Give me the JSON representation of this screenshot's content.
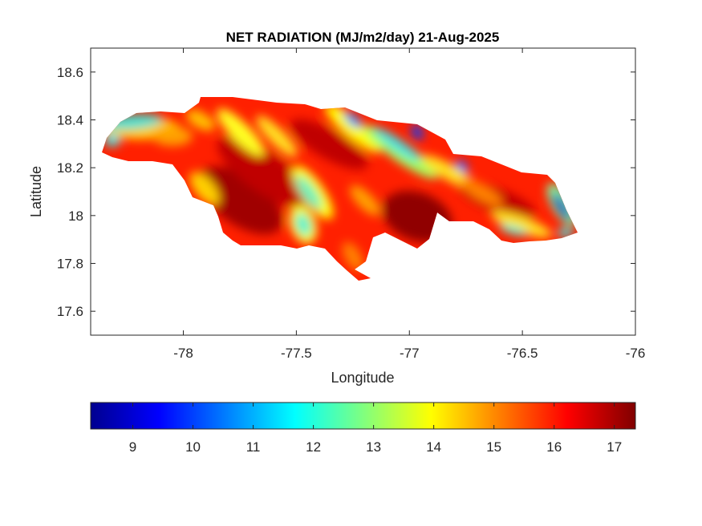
{
  "chart_data": {
    "type": "heatmap",
    "title": "NET RADIATION (MJ/m2/day) 21-Aug-2025",
    "xlabel": "Longitude",
    "ylabel": "Latitude",
    "xlim": [
      -78.41,
      -76
    ],
    "ylim": [
      17.5,
      18.7
    ],
    "xticks": [
      -78,
      -77.5,
      -77,
      -76.5,
      -76
    ],
    "xtick_labels": [
      "-78",
      "-77.5",
      "-77",
      "-76.5",
      "-76"
    ],
    "yticks": [
      17.6,
      17.8,
      18,
      18.2,
      18.4,
      18.6
    ],
    "ytick_labels": [
      "17.6",
      "17.8",
      "18",
      "18.2",
      "18.4",
      "18.6"
    ],
    "grid": false,
    "colormap": "jet",
    "colorbar": {
      "location": "bottom",
      "clim": [
        8.3,
        17.35
      ],
      "ticks": [
        9,
        10,
        11,
        12,
        13,
        14,
        15,
        16,
        17
      ],
      "tick_labels": [
        "9",
        "10",
        "11",
        "12",
        "13",
        "14",
        "15",
        "16",
        "17"
      ]
    },
    "region": "Jamaica",
    "value_summary": "Mostly 15-17 MJ/m2/day; lower values (9-13) in NW-SE bands, minima near -76.3,18.0 and -76.95,18.35"
  }
}
